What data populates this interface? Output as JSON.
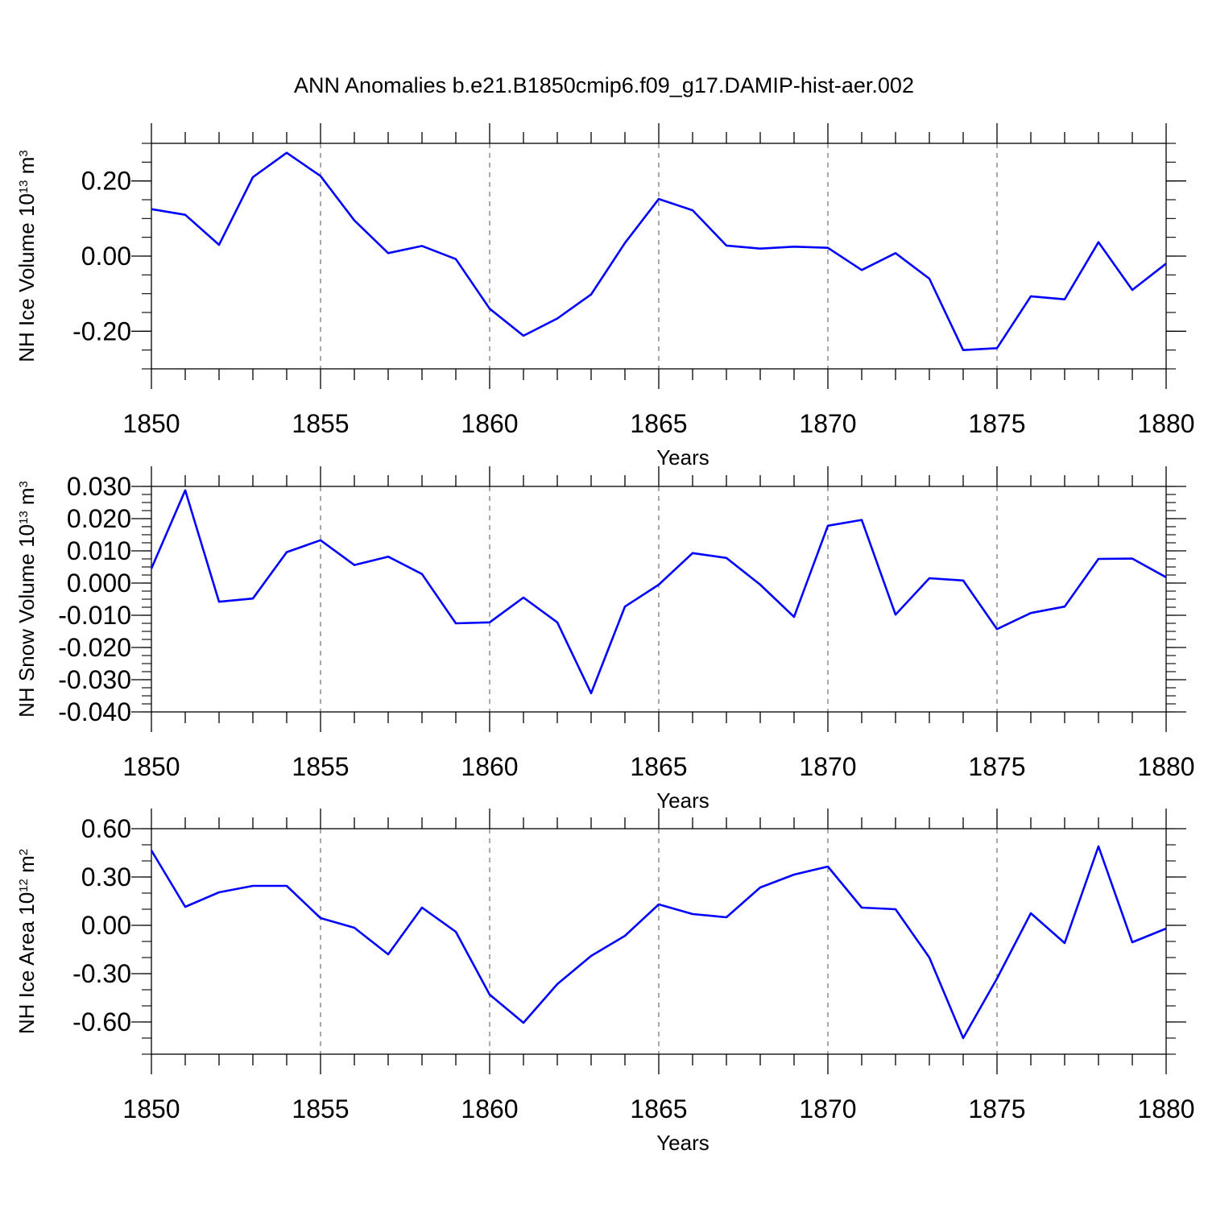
{
  "title": "ANN Anomalies b.e21.B1850cmip6.f09_g17.DAMIP-hist-aer.002",
  "colors": {
    "line": "#0000ff",
    "axis": "#000000",
    "grid": "#555555"
  },
  "chart_data": [
    {
      "type": "line",
      "ylabel": {
        "text": "NH Ice Volume 10",
        "sup": "13",
        "unit": " m",
        "unit_sup": "3"
      },
      "xlabel": "Years",
      "xlim": [
        1850,
        1880
      ],
      "ylim": [
        -0.3,
        0.3
      ],
      "x_ticks": [
        "1850",
        "1855",
        "1860",
        "1865",
        "1870",
        "1875",
        "1880"
      ],
      "y_ticks": [
        "0.20",
        "0.00",
        "-0.20"
      ],
      "y_tick_values": [
        0.2,
        0.0,
        -0.2
      ],
      "grid": "vertical dashed at major x ticks",
      "series": [
        {
          "x": [
            1850,
            1851,
            1852,
            1853,
            1854,
            1855,
            1856,
            1857,
            1858,
            1859,
            1860,
            1861,
            1862,
            1863,
            1864,
            1865,
            1866,
            1867,
            1868,
            1869,
            1870,
            1871,
            1872,
            1873,
            1874,
            1875,
            1876,
            1877,
            1878,
            1879,
            1880
          ],
          "values": [
            0.125,
            0.11,
            0.03,
            0.21,
            0.275,
            0.213,
            0.095,
            0.008,
            0.027,
            -0.008,
            -0.14,
            -0.212,
            -0.166,
            -0.102,
            0.035,
            0.152,
            0.122,
            0.028,
            0.02,
            0.025,
            0.022,
            -0.037,
            0.008,
            -0.06,
            -0.25,
            -0.245,
            -0.107,
            -0.115,
            0.037,
            -0.09,
            -0.02
          ]
        }
      ]
    },
    {
      "type": "line",
      "ylabel": {
        "text": "NH Snow Volume 10",
        "sup": "13",
        "unit": " m",
        "unit_sup": "3"
      },
      "xlabel": "Years",
      "xlim": [
        1850,
        1880
      ],
      "ylim": [
        -0.04,
        0.03
      ],
      "x_ticks": [
        "1850",
        "1855",
        "1860",
        "1865",
        "1870",
        "1875",
        "1880"
      ],
      "y_ticks": [
        "0.030",
        "0.020",
        "0.010",
        "0.000",
        "-0.010",
        "-0.020",
        "-0.030",
        "-0.040"
      ],
      "y_tick_values": [
        0.03,
        0.02,
        0.01,
        0.0,
        -0.01,
        -0.02,
        -0.03,
        -0.04
      ],
      "grid": "vertical dashed at major x ticks",
      "series": [
        {
          "x": [
            1850,
            1851,
            1852,
            1853,
            1854,
            1855,
            1856,
            1857,
            1858,
            1859,
            1860,
            1861,
            1862,
            1863,
            1864,
            1865,
            1866,
            1867,
            1868,
            1869,
            1870,
            1871,
            1872,
            1873,
            1874,
            1875,
            1876,
            1877,
            1878,
            1879,
            1880
          ],
          "values": [
            0.0045,
            0.0288,
            -0.0058,
            -0.0048,
            0.0096,
            0.0133,
            0.0056,
            0.0082,
            0.0028,
            -0.0125,
            -0.0122,
            -0.0045,
            -0.0122,
            -0.0342,
            -0.0073,
            -0.0005,
            0.0093,
            0.0078,
            -0.0005,
            -0.0105,
            0.0178,
            0.0196,
            -0.0098,
            0.0015,
            0.0008,
            -0.0143,
            -0.0093,
            -0.0073,
            0.0075,
            0.0076,
            0.0018
          ]
        }
      ]
    },
    {
      "type": "line",
      "ylabel": {
        "text": "NH Ice Area 10",
        "sup": "12",
        "unit": " m",
        "unit_sup": "2"
      },
      "xlabel": "Years",
      "xlim": [
        1850,
        1880
      ],
      "ylim": [
        -0.8,
        0.6
      ],
      "x_ticks": [
        "1850",
        "1855",
        "1860",
        "1865",
        "1870",
        "1875",
        "1880"
      ],
      "y_ticks": [
        "0.60",
        "0.30",
        "0.00",
        "-0.30",
        "-0.60"
      ],
      "y_tick_values": [
        0.6,
        0.3,
        0.0,
        -0.3,
        -0.6
      ],
      "grid": "vertical dashed at major x ticks",
      "series": [
        {
          "x": [
            1850,
            1851,
            1852,
            1853,
            1854,
            1855,
            1856,
            1857,
            1858,
            1859,
            1860,
            1861,
            1862,
            1863,
            1864,
            1865,
            1866,
            1867,
            1868,
            1869,
            1870,
            1871,
            1872,
            1873,
            1874,
            1875,
            1876,
            1877,
            1878,
            1879,
            1880
          ],
          "values": [
            0.465,
            0.115,
            0.205,
            0.245,
            0.245,
            0.045,
            -0.015,
            -0.18,
            0.11,
            -0.04,
            -0.43,
            -0.605,
            -0.365,
            -0.19,
            -0.065,
            0.13,
            0.07,
            0.05,
            0.235,
            0.315,
            0.365,
            0.11,
            0.1,
            -0.2,
            -0.7,
            -0.33,
            0.075,
            -0.11,
            0.49,
            -0.105,
            -0.02
          ]
        }
      ]
    }
  ]
}
